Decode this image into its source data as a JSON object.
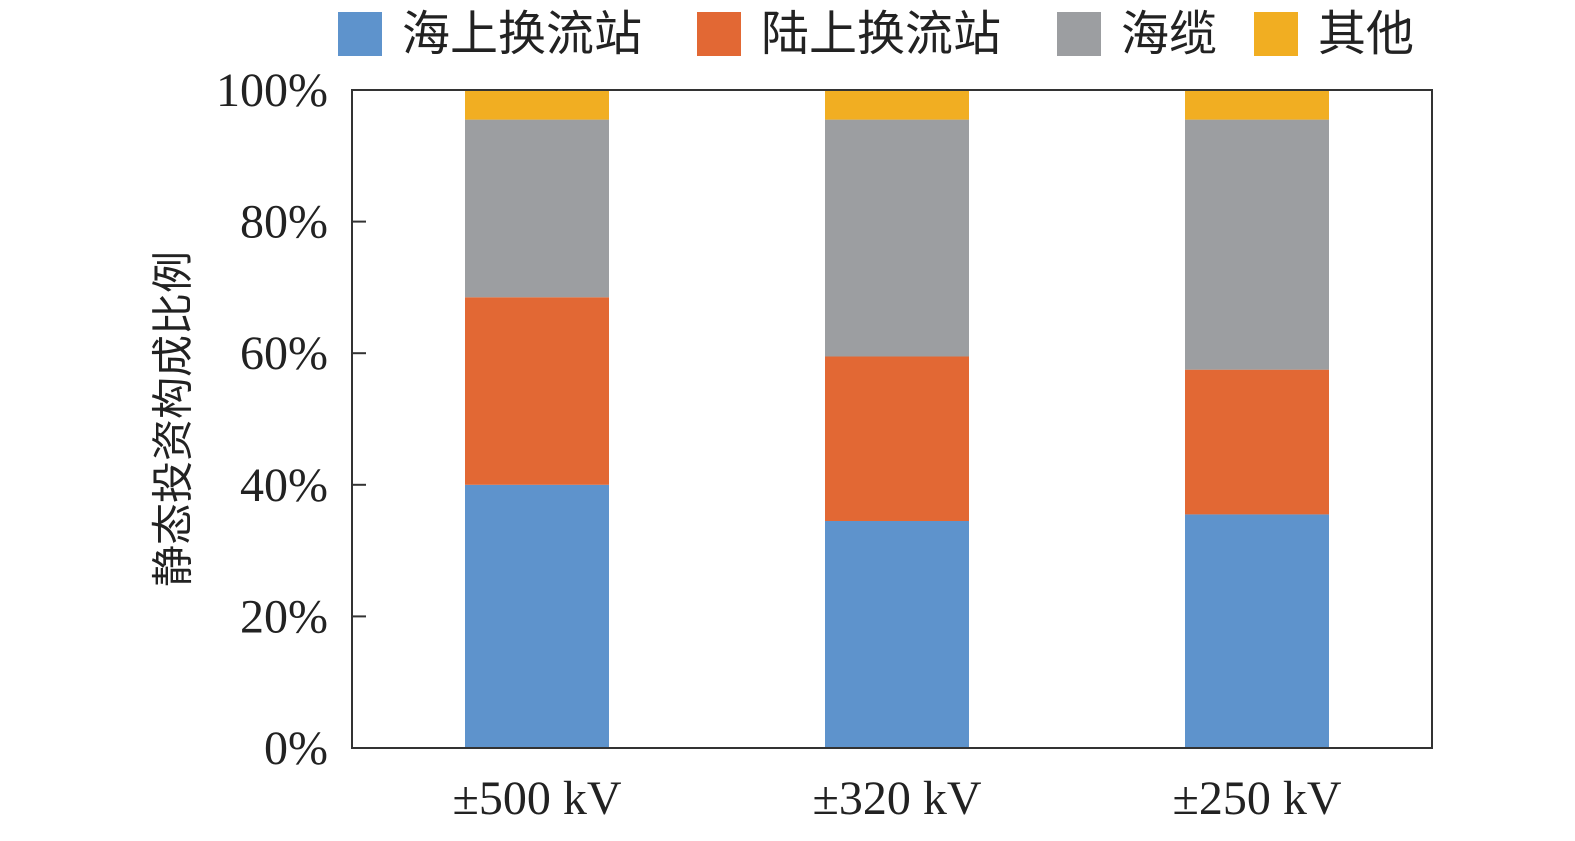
{
  "chart_data": {
    "type": "bar",
    "stacked": true,
    "title": "",
    "xlabel": "",
    "ylabel": "静态投资构成比例",
    "ylim": [
      0,
      100
    ],
    "y_ticks": [
      "0%",
      "20%",
      "40%",
      "60%",
      "80%",
      "100%"
    ],
    "y_tick_values": [
      0,
      20,
      40,
      60,
      80,
      100
    ],
    "grid": false,
    "legend_position": "top",
    "categories": [
      "±500 kV",
      "±320 kV",
      "±250 kV"
    ],
    "series": [
      {
        "name": "海上换流站",
        "color": "#5e93cc",
        "values": [
          40.0,
          34.5,
          35.5
        ]
      },
      {
        "name": "陆上换流站",
        "color": "#e26834",
        "values": [
          28.5,
          25.0,
          22.0
        ]
      },
      {
        "name": "海缆",
        "color": "#9c9ea1",
        "values": [
          27.0,
          36.0,
          38.0
        ]
      },
      {
        "name": "其他",
        "color": "#f1ae22",
        "values": [
          4.5,
          4.5,
          4.5
        ]
      }
    ]
  }
}
